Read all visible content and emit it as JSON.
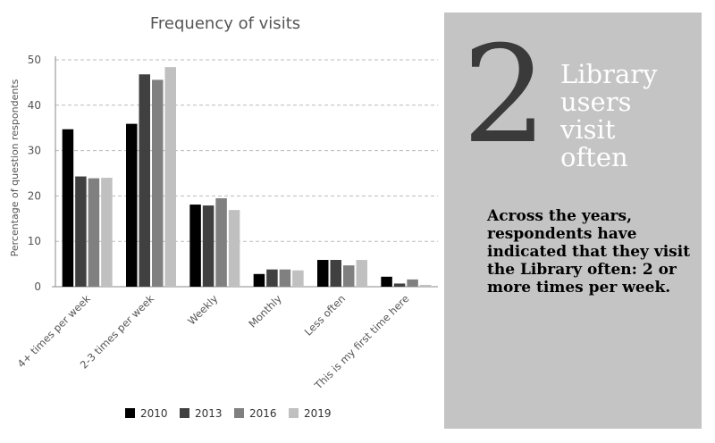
{
  "chart_data": {
    "type": "bar",
    "title": "Frequency of visits",
    "y_label": "Percentage of question respondents",
    "categories": [
      "4+ times per week",
      "2-3 times per week",
      "Weekly",
      "Monthly",
      "Less often",
      "This is my first time here"
    ],
    "series": [
      {
        "name": "2010",
        "color": "#000000",
        "values": [
          34.7,
          35.9,
          18.1,
          2.8,
          5.9,
          2.2
        ]
      },
      {
        "name": "2013",
        "color": "#404040",
        "values": [
          24.3,
          46.8,
          17.9,
          3.8,
          5.9,
          0.7
        ]
      },
      {
        "name": "2016",
        "color": "#808080",
        "values": [
          23.9,
          45.6,
          19.5,
          3.8,
          4.7,
          1.6
        ]
      },
      {
        "name": "2019",
        "color": "#c0c0c0",
        "values": [
          24.0,
          48.4,
          16.9,
          3.6,
          5.9,
          0.4
        ]
      }
    ],
    "ylim": [
      0,
      50
    ],
    "yticks": [
      0,
      10,
      20,
      30,
      40,
      50
    ],
    "grid": true,
    "legend": "bottom"
  },
  "panel": {
    "number": "2",
    "headline": [
      "Library",
      "users",
      "visit",
      "often"
    ],
    "body": "Across the years, respondents have indicated that they visit the Library often: 2 or more times per week."
  }
}
